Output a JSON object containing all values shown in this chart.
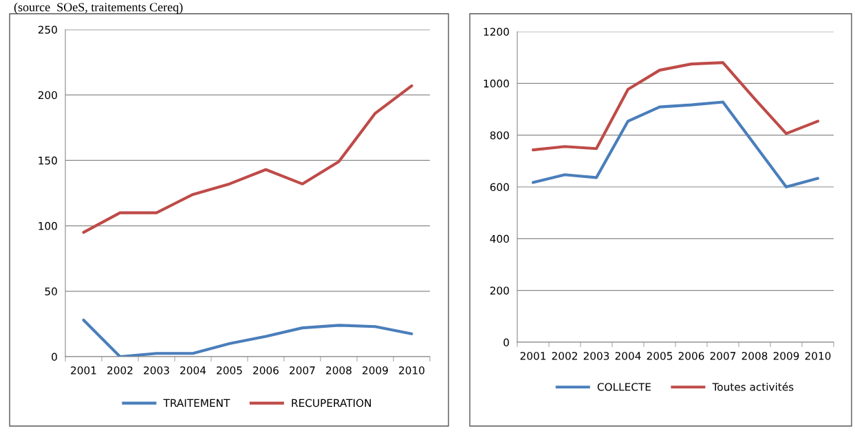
{
  "chart_data": [
    {
      "type": "line",
      "annotations": [
        "(source  SOeS, traitements Cereq)"
      ],
      "categories": [
        "2001",
        "2002",
        "2003",
        "2004",
        "2005",
        "2006",
        "2007",
        "2008",
        "2009",
        "2010"
      ],
      "ylim": [
        0,
        250
      ],
      "yticks": [
        0,
        50,
        100,
        150,
        200,
        250
      ],
      "grid": "y",
      "legend": "bottom",
      "series": [
        {
          "name": "TRAITEMENT",
          "color": "#4a7ebb",
          "values": [
            28,
            0,
            2.5,
            2.5,
            10,
            15.5,
            22,
            24,
            23,
            17.5
          ]
        },
        {
          "name": "RECUPERATION",
          "color": "#be4b48",
          "values": [
            95,
            110,
            110,
            124,
            132,
            143,
            132,
            149,
            186,
            207
          ]
        }
      ]
    },
    {
      "type": "line",
      "categories": [
        "2001",
        "2002",
        "2003",
        "2004",
        "2005",
        "2006",
        "2007",
        "2008",
        "2009",
        "2010"
      ],
      "ylim": [
        0,
        1200
      ],
      "yticks": [
        0,
        200,
        400,
        600,
        800,
        1000,
        1200
      ],
      "grid": "y",
      "legend": "bottom",
      "series": [
        {
          "name": "COLLECTE",
          "color": "#4a7ebb",
          "values": [
            617,
            647,
            636,
            854,
            909,
            917,
            928,
            764,
            600,
            633
          ]
        },
        {
          "name": "Toutes activités",
          "color": "#be4b48",
          "values": [
            743,
            756,
            748,
            977,
            1051,
            1075,
            1080,
            941,
            806,
            854
          ]
        }
      ]
    }
  ]
}
